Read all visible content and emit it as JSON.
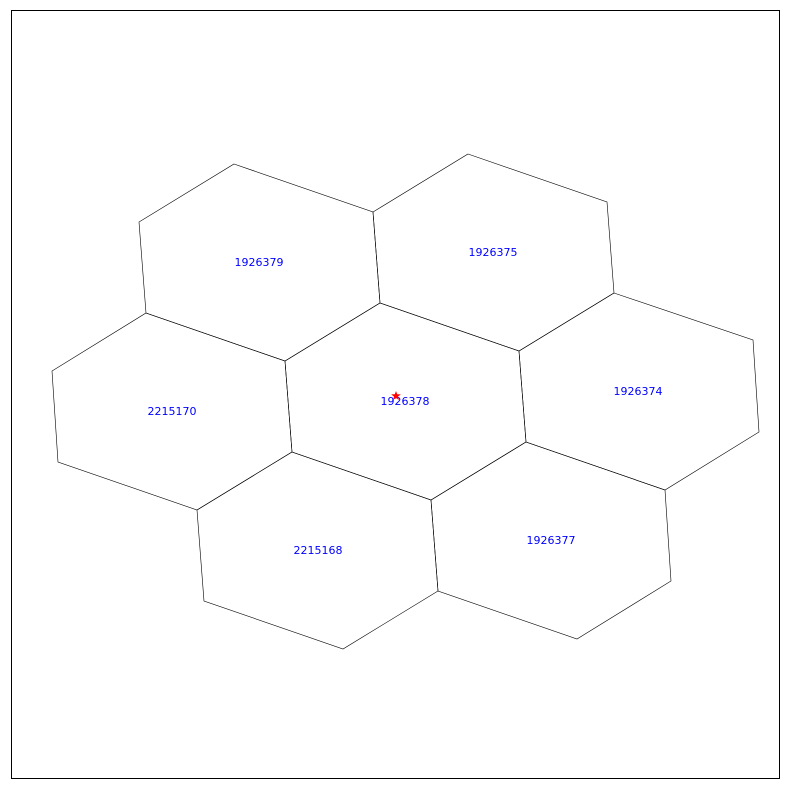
{
  "colors": {
    "label": "#0000ff",
    "outline": "#000000",
    "marker": "#ff0000"
  },
  "cells": [
    {
      "id": "1926379"
    },
    {
      "id": "1926375"
    },
    {
      "id": "2215170"
    },
    {
      "id": "1926378"
    },
    {
      "id": "1926374"
    },
    {
      "id": "2215168"
    },
    {
      "id": "1926377"
    }
  ],
  "marker": {
    "symbol": "star",
    "cell": "1926378"
  }
}
